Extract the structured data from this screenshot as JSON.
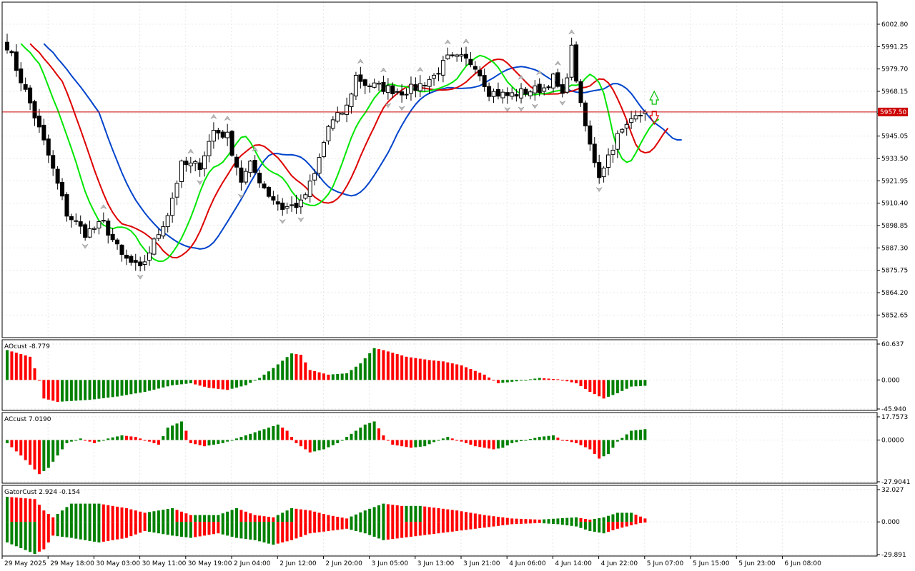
{
  "chart_data": [
    {
      "id": "price",
      "type": "candlestick",
      "ylim": [
        5841.0,
        6014.2
      ],
      "current_price": 5957.5,
      "current_price_label": "5957.50",
      "y_ticks": [
        "6002.80",
        "5991.25",
        "5979.70",
        "5968.15",
        "5956.60",
        "5945.05",
        "5933.50",
        "5921.95",
        "5910.40",
        "5898.85",
        "5887.30",
        "5875.75",
        "5864.20",
        "5852.65"
      ],
      "x_ticks": [
        "29 May 2025",
        "29 May 18:00",
        "30 May 03:00",
        "30 May 11:00",
        "30 May 19:00",
        "2 Jun 04:00",
        "2 Jun 12:00",
        "2 Jun 20:00",
        "3 Jun 05:00",
        "3 Jun 13:00",
        "3 Jun 21:00",
        "4 Jun 06:00",
        "4 Jun 14:00",
        "4 Jun 22:00",
        "5 Jun 07:00",
        "5 Jun 15:00",
        "5 Jun 23:00",
        "6 Jun 08:00"
      ],
      "series_colors": {
        "ma_fast": "#00e600",
        "ma_mid": "#dd0000",
        "ma_slow": "#0044cc",
        "price_line": "#cc0000"
      },
      "close_path": [
        [
          0,
          5992
        ],
        [
          5,
          5962
        ],
        [
          9,
          5935
        ],
        [
          13,
          5905
        ],
        [
          17,
          5895
        ],
        [
          21,
          5900
        ],
        [
          25,
          5883
        ],
        [
          29,
          5876
        ],
        [
          33,
          5895
        ],
        [
          35,
          5905
        ],
        [
          38,
          5930
        ],
        [
          42,
          5930
        ],
        [
          45,
          5948
        ],
        [
          48,
          5945
        ],
        [
          51,
          5922
        ],
        [
          53,
          5930
        ],
        [
          57,
          5915
        ],
        [
          60,
          5908
        ],
        [
          64,
          5910
        ],
        [
          67,
          5925
        ],
        [
          70,
          5950
        ],
        [
          74,
          5960
        ],
        [
          76,
          5976
        ],
        [
          78,
          5972
        ],
        [
          82,
          5970
        ],
        [
          86,
          5968
        ],
        [
          89,
          5970
        ],
        [
          93,
          5976
        ],
        [
          96,
          5985
        ],
        [
          99,
          5985
        ],
        [
          102,
          5982
        ],
        [
          105,
          5968
        ],
        [
          109,
          5966
        ],
        [
          113,
          5968
        ],
        [
          117,
          5970
        ],
        [
          119,
          5975
        ],
        [
          121,
          5965
        ],
        [
          123,
          5990
        ],
        [
          125,
          5960
        ],
        [
          127,
          5940
        ],
        [
          129,
          5925
        ],
        [
          131,
          5935
        ],
        [
          133,
          5945
        ],
        [
          135,
          5950
        ],
        [
          137,
          5958
        ],
        [
          139,
          5957.5
        ]
      ]
    },
    {
      "id": "ao",
      "type": "bar",
      "label": "AOcust -8.779",
      "ylim": [
        -45.94,
        60.637
      ],
      "y_ticks": [
        "60.637",
        "0.000",
        "-45.940"
      ],
      "up_color": "#008000",
      "down_color": "#ff0000",
      "path": [
        [
          0,
          45
        ],
        [
          5,
          35
        ],
        [
          7,
          0
        ],
        [
          8,
          -28
        ],
        [
          11,
          -33
        ],
        [
          18,
          -30
        ],
        [
          24,
          -25
        ],
        [
          30,
          -18
        ],
        [
          36,
          -8
        ],
        [
          40,
          -5
        ],
        [
          44,
          -12
        ],
        [
          48,
          -15
        ],
        [
          52,
          -8
        ],
        [
          55,
          3
        ],
        [
          58,
          18
        ],
        [
          62,
          40
        ],
        [
          64,
          38
        ],
        [
          66,
          15
        ],
        [
          70,
          8
        ],
        [
          74,
          10
        ],
        [
          77,
          25
        ],
        [
          80,
          48
        ],
        [
          82,
          45
        ],
        [
          87,
          35
        ],
        [
          92,
          30
        ],
        [
          95,
          28
        ],
        [
          99,
          22
        ],
        [
          104,
          8
        ],
        [
          107,
          -5
        ],
        [
          111,
          -2
        ],
        [
          116,
          3
        ],
        [
          120,
          1
        ],
        [
          124,
          -5
        ],
        [
          127,
          -18
        ],
        [
          130,
          -28
        ],
        [
          133,
          -20
        ],
        [
          136,
          -10
        ],
        [
          139,
          -8.779
        ]
      ]
    },
    {
      "id": "ac",
      "type": "bar",
      "label": "ACcust 7.0190",
      "ylim": [
        -27.9041,
        17.7573
      ],
      "y_ticks": [
        "17.7573",
        "0.0000",
        "-27.9041"
      ],
      "up_color": "#008000",
      "down_color": "#ff0000",
      "path": [
        [
          0,
          -2
        ],
        [
          3,
          -10
        ],
        [
          7,
          -22
        ],
        [
          9,
          -18
        ],
        [
          11,
          -10
        ],
        [
          13,
          -2
        ],
        [
          16,
          1
        ],
        [
          19,
          -2
        ],
        [
          22,
          1
        ],
        [
          25,
          3
        ],
        [
          28,
          2
        ],
        [
          31,
          -1
        ],
        [
          33,
          -3
        ],
        [
          35,
          8
        ],
        [
          38,
          12
        ],
        [
          39,
          6
        ],
        [
          40,
          -2
        ],
        [
          43,
          -4
        ],
        [
          47,
          -2
        ],
        [
          50,
          1
        ],
        [
          53,
          4
        ],
        [
          56,
          7
        ],
        [
          59,
          10
        ],
        [
          61,
          6
        ],
        [
          63,
          -2
        ],
        [
          66,
          -8
        ],
        [
          69,
          -6
        ],
        [
          72,
          -2
        ],
        [
          75,
          4
        ],
        [
          78,
          10
        ],
        [
          80,
          12
        ],
        [
          82,
          3
        ],
        [
          84,
          -3
        ],
        [
          88,
          -5
        ],
        [
          91,
          -4
        ],
        [
          94,
          0
        ],
        [
          96,
          2
        ],
        [
          99,
          -1
        ],
        [
          102,
          -4
        ],
        [
          106,
          -6
        ],
        [
          108,
          -5
        ],
        [
          110,
          -2
        ],
        [
          113,
          0
        ],
        [
          116,
          2
        ],
        [
          119,
          3
        ],
        [
          121,
          0
        ],
        [
          124,
          -2
        ],
        [
          127,
          -6
        ],
        [
          129,
          -12
        ],
        [
          131,
          -9
        ],
        [
          133,
          -1
        ],
        [
          136,
          6
        ],
        [
          139,
          7.019
        ]
      ]
    },
    {
      "id": "gator",
      "type": "bar",
      "label": "GatorCust 2.924 -0.154",
      "ylim": [
        -29.891,
        32.027
      ],
      "y_ticks": [
        "32.027",
        "0.000",
        "-29.891"
      ],
      "up_color": "#008000",
      "down_color": "#ff0000",
      "upper_path": [
        [
          0,
          22
        ],
        [
          6,
          20
        ],
        [
          8,
          10
        ],
        [
          10,
          4
        ],
        [
          14,
          16
        ],
        [
          20,
          16
        ],
        [
          26,
          12
        ],
        [
          30,
          8
        ],
        [
          36,
          12
        ],
        [
          40,
          6
        ],
        [
          46,
          6
        ],
        [
          50,
          12
        ],
        [
          54,
          6
        ],
        [
          58,
          4
        ],
        [
          62,
          12
        ],
        [
          66,
          10
        ],
        [
          70,
          6
        ],
        [
          74,
          3
        ],
        [
          78,
          10
        ],
        [
          82,
          16
        ],
        [
          86,
          14
        ],
        [
          90,
          14
        ],
        [
          94,
          12
        ],
        [
          98,
          10
        ],
        [
          104,
          6
        ],
        [
          110,
          3
        ],
        [
          116,
          2
        ],
        [
          120,
          3
        ],
        [
          124,
          4
        ],
        [
          127,
          2
        ],
        [
          130,
          4
        ],
        [
          133,
          8
        ],
        [
          136,
          8
        ],
        [
          139,
          3
        ]
      ],
      "lower_path": [
        [
          0,
          -18
        ],
        [
          6,
          -28
        ],
        [
          8,
          -24
        ],
        [
          10,
          -12
        ],
        [
          14,
          -14
        ],
        [
          20,
          -18
        ],
        [
          26,
          -14
        ],
        [
          30,
          -8
        ],
        [
          36,
          -12
        ],
        [
          40,
          -14
        ],
        [
          46,
          -10
        ],
        [
          50,
          -14
        ],
        [
          54,
          -16
        ],
        [
          58,
          -20
        ],
        [
          62,
          -16
        ],
        [
          66,
          -10
        ],
        [
          70,
          -8
        ],
        [
          74,
          -6
        ],
        [
          78,
          -10
        ],
        [
          82,
          -16
        ],
        [
          86,
          -14
        ],
        [
          90,
          -12
        ],
        [
          94,
          -10
        ],
        [
          98,
          -8
        ],
        [
          104,
          -5
        ],
        [
          110,
          -2
        ],
        [
          116,
          -1
        ],
        [
          120,
          -2
        ],
        [
          124,
          -4
        ],
        [
          127,
          -8
        ],
        [
          130,
          -10
        ],
        [
          133,
          -6
        ],
        [
          136,
          -3
        ],
        [
          139,
          -0.154
        ]
      ]
    }
  ]
}
